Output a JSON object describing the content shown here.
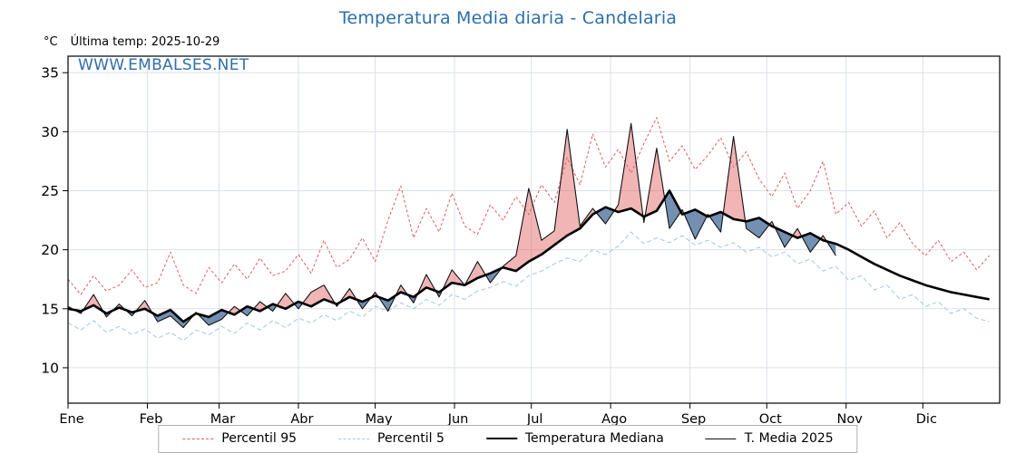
{
  "page": {
    "title": "Temperatura Media diaria - Candelaria"
  },
  "header": {
    "unit_label": "°C",
    "last_temp_label": "Última temp: 2025-10-29",
    "watermark": "WWW.EMBALSES.NET"
  },
  "chart_data": {
    "type": "line",
    "title": "Temperatura Media diaria - Candelaria",
    "xlabel": "",
    "ylabel": "°C",
    "grid": true,
    "legend_position": "bottom",
    "x_unit": "day_of_year",
    "x_tick_labels": [
      "Ene",
      "Feb",
      "Mar",
      "Abr",
      "May",
      "Jun",
      "Jul",
      "Ago",
      "Sep",
      "Oct",
      "Nov",
      "Dic"
    ],
    "month_start_days": [
      0,
      31,
      59,
      90,
      120,
      151,
      181,
      212,
      243,
      273,
      304,
      334
    ],
    "y_ticks": [
      10,
      15,
      20,
      25,
      30,
      35
    ],
    "ylim": [
      7,
      36.4
    ],
    "xlim": [
      0,
      364
    ],
    "x_days": [
      0,
      5,
      10,
      15,
      20,
      25,
      30,
      35,
      40,
      45,
      50,
      55,
      60,
      65,
      70,
      75,
      80,
      85,
      90,
      95,
      100,
      105,
      110,
      115,
      120,
      125,
      130,
      135,
      140,
      145,
      150,
      155,
      160,
      165,
      170,
      175,
      180,
      185,
      190,
      195,
      200,
      205,
      210,
      215,
      220,
      225,
      230,
      235,
      240,
      245,
      250,
      255,
      260,
      265,
      270,
      275,
      280,
      285,
      290,
      295,
      300,
      305,
      310,
      315,
      320,
      325,
      330,
      335,
      340,
      345,
      350,
      355,
      360
    ],
    "series": [
      {
        "name": "Percentil 95",
        "color": "#e05c5c",
        "dash": "3,2.5",
        "width": 1,
        "values": [
          17.5,
          16.2,
          17.8,
          16.5,
          17.0,
          18.3,
          16.8,
          17.2,
          19.8,
          17.0,
          16.3,
          18.5,
          17.2,
          18.8,
          17.5,
          19.3,
          17.8,
          18.2,
          19.6,
          18.0,
          20.8,
          18.5,
          19.2,
          21.0,
          19.0,
          22.5,
          25.4,
          21.0,
          23.5,
          21.5,
          24.8,
          22.0,
          21.3,
          23.8,
          22.5,
          24.5,
          23.0,
          25.5,
          24.0,
          27.8,
          25.5,
          29.8,
          27.0,
          28.5,
          26.5,
          29.0,
          31.2,
          27.5,
          28.8,
          26.8,
          28.0,
          29.5,
          27.0,
          28.3,
          26.0,
          24.5,
          26.5,
          23.5,
          25.0,
          27.5,
          23.0,
          24.0,
          22.0,
          23.3,
          21.0,
          22.3,
          20.5,
          19.5,
          20.8,
          19.0,
          19.8,
          18.3,
          19.5
        ]
      },
      {
        "name": "Percentil 5",
        "color": "#9fc9de",
        "dash": "5,3",
        "width": 1,
        "values": [
          13.8,
          13.2,
          14.0,
          13.0,
          13.5,
          12.8,
          13.3,
          12.5,
          13.0,
          12.3,
          13.2,
          12.8,
          13.5,
          12.9,
          13.8,
          13.2,
          14.0,
          13.4,
          14.2,
          13.8,
          14.5,
          14.0,
          14.8,
          14.3,
          15.2,
          14.8,
          15.5,
          15.0,
          15.8,
          15.3,
          16.2,
          15.8,
          16.5,
          16.8,
          17.3,
          16.9,
          17.8,
          18.2,
          18.8,
          19.3,
          19.0,
          20.0,
          19.6,
          20.3,
          21.5,
          20.5,
          21.0,
          20.6,
          21.2,
          20.4,
          20.8,
          20.2,
          20.6,
          19.8,
          20.2,
          19.4,
          19.8,
          18.8,
          19.2,
          18.2,
          18.6,
          17.4,
          17.8,
          16.6,
          17.0,
          15.8,
          16.2,
          15.2,
          15.6,
          14.6,
          15.0,
          14.2,
          13.9
        ]
      },
      {
        "name": "Temperatura Mediana",
        "color": "#000000",
        "dash": "",
        "width": 2.6,
        "values": [
          15.0,
          14.8,
          15.3,
          14.6,
          15.1,
          14.7,
          15.0,
          14.4,
          14.9,
          13.9,
          14.6,
          14.3,
          14.9,
          14.5,
          15.2,
          14.8,
          15.4,
          15.0,
          15.6,
          15.2,
          15.8,
          15.4,
          16.0,
          15.6,
          16.1,
          15.7,
          16.4,
          16.0,
          16.8,
          16.4,
          17.2,
          17.0,
          17.6,
          18.0,
          18.5,
          18.2,
          19.0,
          19.6,
          20.4,
          21.2,
          21.8,
          23.0,
          23.6,
          23.2,
          23.5,
          22.8,
          23.3,
          25.0,
          23.0,
          23.4,
          22.8,
          23.2,
          22.6,
          22.4,
          22.7,
          22.0,
          21.5,
          21.0,
          21.4,
          20.8,
          20.5,
          20.0,
          19.4,
          18.8,
          18.3,
          17.8,
          17.4,
          17.0,
          16.7,
          16.4,
          16.2,
          16.0,
          15.8
        ]
      },
      {
        "name": "T. Media 2025",
        "color": "#111111",
        "dash": "",
        "width": 1.1,
        "values": [
          15.2,
          14.6,
          16.2,
          14.3,
          15.4,
          14.4,
          15.7,
          13.9,
          14.4,
          13.4,
          14.7,
          13.6,
          14.1,
          15.2,
          14.4,
          15.6,
          14.8,
          16.3,
          15.0,
          16.4,
          17.0,
          15.2,
          16.7,
          15.0,
          16.4,
          14.8,
          17.0,
          15.5,
          17.9,
          16.0,
          18.3,
          17.0,
          19.0,
          17.2,
          18.6,
          19.5,
          25.2,
          20.8,
          21.6,
          30.2,
          22.0,
          23.5,
          22.2,
          23.8,
          30.7,
          22.3,
          28.6,
          21.8,
          23.4,
          20.9,
          23.0,
          21.5,
          29.6,
          21.8,
          21.0,
          22.4,
          20.2,
          21.8,
          19.8,
          21.2,
          19.5
        ]
      }
    ],
    "fills": {
      "description": "area between T. Media 2025 and Temperatura Mediana",
      "above_color": "rgba(224,92,92,0.45)",
      "below_color": "rgba(80,116,160,0.8)"
    }
  }
}
